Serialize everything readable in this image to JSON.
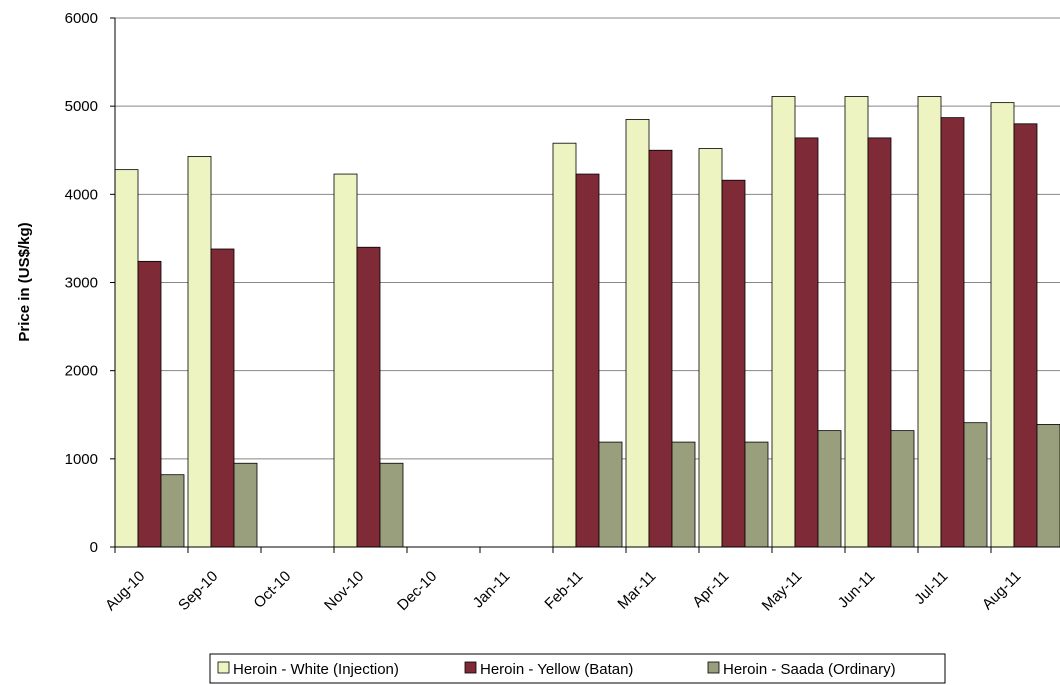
{
  "chart_data": {
    "type": "bar",
    "title": "",
    "xlabel": "",
    "ylabel": "Price in (US$/kg)",
    "ylim": [
      0,
      6000
    ],
    "yticks": [
      0,
      1000,
      2000,
      3000,
      4000,
      5000,
      6000
    ],
    "grid": true,
    "legend_position": "bottom",
    "categories": [
      "Aug-10",
      "Sep-10",
      "Oct-10",
      "Nov-10",
      "Dec-10",
      "Jan-11",
      "Feb-11",
      "Mar-11",
      "Apr-11",
      "May-11",
      "Jun-11",
      "Jul-11",
      "Aug-11"
    ],
    "series": [
      {
        "name": "Heroin - White (Injection)",
        "color": "#EEF3C2",
        "values": [
          4280,
          4430,
          null,
          4230,
          null,
          null,
          4580,
          4850,
          4520,
          5110,
          5110,
          5110,
          5040
        ]
      },
      {
        "name": "Heroin - Yellow (Batan)",
        "color": "#7F2A37",
        "values": [
          3240,
          3380,
          null,
          3400,
          null,
          null,
          4230,
          4500,
          4160,
          4640,
          4640,
          4870,
          4800
        ]
      },
      {
        "name": "Heroin - Saada (Ordinary)",
        "color": "#999E7C",
        "values": [
          820,
          950,
          null,
          950,
          null,
          null,
          1190,
          1190,
          1190,
          1320,
          1320,
          1410,
          1390
        ]
      }
    ]
  }
}
